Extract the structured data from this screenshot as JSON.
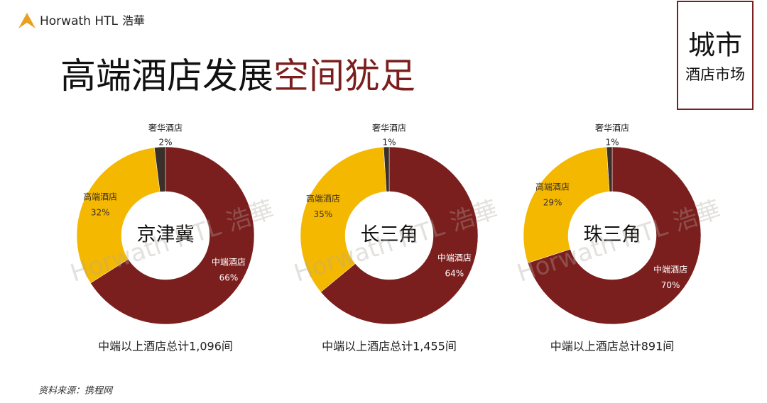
{
  "logo": {
    "brand": "Horwath HTL",
    "chinese": "浩華"
  },
  "title": {
    "part1": "高端酒店发展",
    "part2": "空间犹足"
  },
  "badge": {
    "line1": "城市",
    "line2": "酒店市场"
  },
  "watermark": "Horwath HTL 浩華",
  "source": "资料来源：携程网",
  "chart_data": [
    {
      "type": "donut",
      "title": "京津冀",
      "caption": "中端以上酒店总计1,096间",
      "categories": [
        "中端酒店",
        "高端酒店",
        "奢华酒店"
      ],
      "values": [
        66,
        32,
        2
      ],
      "value_labels": [
        "66%",
        "32%",
        "2%"
      ],
      "colors": [
        "#7b1f1e",
        "#f5b800",
        "#3b2f29"
      ]
    },
    {
      "type": "donut",
      "title": "长三角",
      "caption": "中端以上酒店总计1,455间",
      "categories": [
        "中端酒店",
        "高端酒店",
        "奢华酒店"
      ],
      "values": [
        64,
        35,
        1
      ],
      "value_labels": [
        "64%",
        "35%",
        "1%"
      ],
      "colors": [
        "#7b1f1e",
        "#f5b800",
        "#3b2f29"
      ]
    },
    {
      "type": "donut",
      "title": "珠三角",
      "caption": "中端以上酒店总计891间",
      "categories": [
        "中端酒店",
        "高端酒店",
        "奢华酒店"
      ],
      "values": [
        70,
        29,
        1
      ],
      "value_labels": [
        "70%",
        "29%",
        "1%"
      ],
      "colors": [
        "#7b1f1e",
        "#f5b800",
        "#3b2f29"
      ]
    }
  ]
}
